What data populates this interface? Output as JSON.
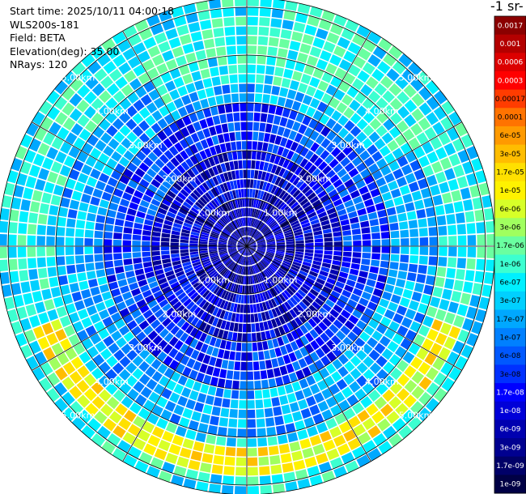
{
  "info": {
    "start_time": "Start time: 2025/10/11 04:00:18",
    "instrument": "WLS200s-181",
    "field": "Field: BETA",
    "elevation": "Elevation(deg): 35.00",
    "nrays": "NRays: 120"
  },
  "colorbar": {
    "unit_label": "-1 sr-",
    "levels": [
      "0.0017",
      "0.001",
      "0.0006",
      "0.0003",
      "0.00017",
      "0.0001",
      "6e-05",
      "3e-05",
      "1.7e-05",
      "1e-05",
      "6e-06",
      "3e-06",
      "1.7e-06",
      "1e-06",
      "6e-07",
      "3e-07",
      "1.7e-07",
      "1e-07",
      "6e-08",
      "3e-08",
      "1.7e-08",
      "1e-08",
      "6e-09",
      "3e-09",
      "1.7e-09",
      "1e-09"
    ],
    "colors": [
      "#8b0000",
      "#b40000",
      "#dc0000",
      "#ff0000",
      "#ff3c00",
      "#ff7300",
      "#ff9a00",
      "#ffbd00",
      "#ffe000",
      "#fff200",
      "#d7ff28",
      "#a0ff5f",
      "#6affa0",
      "#3cffd0",
      "#00f0ff",
      "#00d0ff",
      "#00a8ff",
      "#0080ff",
      "#0058ff",
      "#0030ff",
      "#0000ff",
      "#0000d8",
      "#0000b0",
      "#000090",
      "#000068",
      "#000045"
    ]
  },
  "chart_data": {
    "type": "heatmap",
    "projection": "polar PPI",
    "n_rays": 120,
    "range_rings_km": [
      1,
      2,
      3,
      4,
      5
    ],
    "range_ring_labels": [
      "1.00km",
      "2.00km",
      "3.00km",
      "4.00km",
      "5.00km"
    ],
    "max_range_km": 5.2,
    "radial_gridlines_deg": [
      0,
      30,
      60,
      90,
      120,
      150,
      180,
      210,
      240,
      270,
      300,
      330
    ],
    "field": "BETA",
    "value_scale": "log",
    "value_range": [
      1e-09,
      0.0017
    ],
    "structure": [
      {
        "feature": "near-range core",
        "range_km": [
          0,
          2
        ],
        "typical_level": "1e-08"
      },
      {
        "feature": "mid-range field",
        "range_km": [
          2,
          4
        ],
        "typical_level": "1e-07"
      },
      {
        "feature": "enhanced arc (south)",
        "range_km": [
          4.2,
          4.8
        ],
        "azimuth_deg": [
          110,
          250
        ],
        "typical_level": "1.7e-05"
      },
      {
        "feature": "enhanced arc (north)",
        "range_km": [
          3.5,
          4.5
        ],
        "azimuth_deg": [
          330,
          60
        ],
        "typical_level": "1e-06"
      },
      {
        "feature": "outer edge",
        "range_km": [
          4.8,
          5.2
        ],
        "typical_level": "3e-07"
      }
    ]
  }
}
